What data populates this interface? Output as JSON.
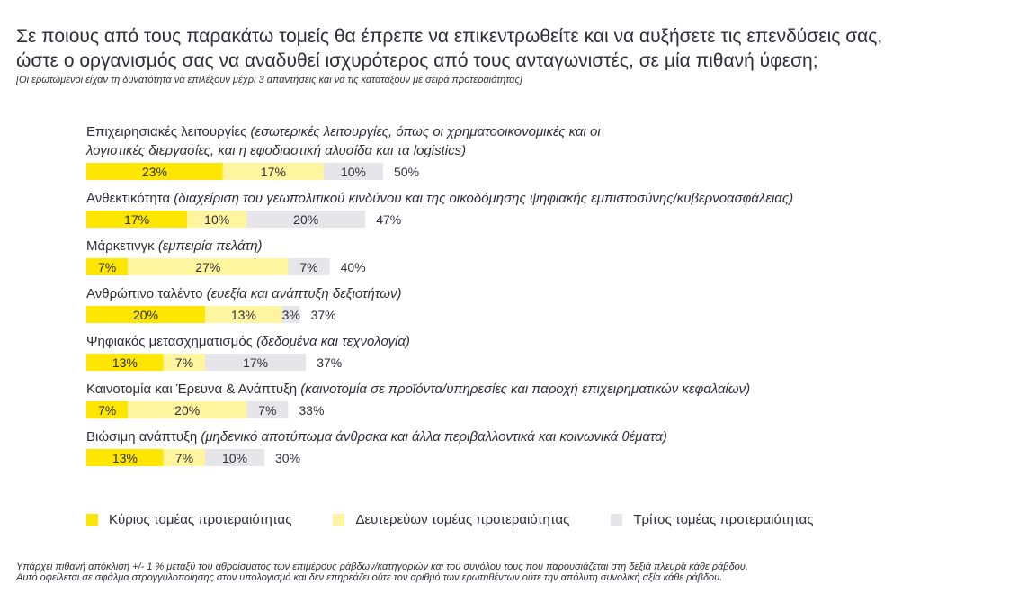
{
  "title_lines": [
    "Σε ποιους από τους παρακάτω τομείς θα έπρεπε να επικεντρωθείτε και να αυξήσετε τις επενδύσεις σας,",
    "ώστε ο οργανισμός σας να αναδυθεί ισχυρότερος από τους ανταγωνιστές, σε μία πιθανή ύφεση;"
  ],
  "note": "[Οι ερωτώμενοι είχαν τη δυνατότητα να επιλέξουν μέχρι 3 απαντήσεις και να τις κατατάξουν με σειρά προτεραιότητας]",
  "footer_lines": [
    "Υπάρχει πιθανή απόκλιση +/- 1 % μεταξύ του αθροίσματος των επιμέρους ράβδων/κατηγοριών και του συνόλου τους που παρουσιάζεται στη δεξιά πλευρά κάθε ράβδου.",
    "Αυτό οφείλεται σε σφάλμα στρογγυλοποίησης στον υπολογισμό και δεν επηρεάζει ούτε τον αριθμό των ερωτηθέντων ούτε την απόλυτη συνολική αξία κάθε ράβδου."
  ],
  "colors": {
    "primary": "#ffe600",
    "secondary": "#fff59e",
    "tertiary": "#e5e5ea",
    "text": "#2e2e38"
  },
  "chart_data": {
    "type": "bar",
    "orientation": "horizontal",
    "stacked": true,
    "legend_position": "bottom",
    "grid": false,
    "categories": [
      {
        "name": "Επιχειρησιακές λειτουργίες",
        "desc_lines": [
          "(εσωτερικές λειτουργίες, όπως οι χρηματοοικονομικές και οι",
          "λογιστικές διεργασίες, και η εφοδιαστική αλυσίδα και τα logistics)"
        ]
      },
      {
        "name": "Ανθεκτικότητα",
        "desc_lines": [
          "(διαχείριση του γεωπολιτικού κινδύνου και της οικοδόμησης ψηφιακής εμπιστοσύνης/κυβερνοασφάλειας)"
        ]
      },
      {
        "name": "Μάρκετινγκ",
        "desc_lines": [
          "(εμπειρία πελάτη)"
        ]
      },
      {
        "name": "Ανθρώπινο ταλέντο",
        "desc_lines": [
          "(ευεξία και ανάπτυξη δεξιοτήτων)"
        ]
      },
      {
        "name": "Ψηφιακός μετασχηματισμός",
        "desc_lines": [
          "(δεδομένα και τεχνολογία)"
        ]
      },
      {
        "name": "Καινοτομία και Έρευνα & Ανάπτυξη",
        "desc_lines": [
          "(καινοτομία σε προϊόντα/υπηρεσίες και παροχή επιχειρηματικών κεφαλαίων)"
        ]
      },
      {
        "name": "Βιώσιμη ανάπτυξη",
        "desc_lines": [
          "(μηδενικό αποτύπωμα άνθρακα και άλλα περιβαλλοντικά και κοινωνικά θέματα)"
        ]
      }
    ],
    "series": [
      {
        "name": "Κύριος τομέας προτεραιότητας",
        "values": [
          23,
          17,
          7,
          20,
          13,
          7,
          13
        ]
      },
      {
        "name": "Δευτερεύων τομέας προτεραιότητας",
        "values": [
          17,
          10,
          27,
          13,
          7,
          20,
          7
        ]
      },
      {
        "name": "Τρίτος τομέας προτεραιότητας",
        "values": [
          10,
          20,
          7,
          3,
          17,
          7,
          10
        ]
      }
    ],
    "totals": [
      50,
      47,
      40,
      37,
      37,
      33,
      30
    ],
    "value_suffix": "%"
  }
}
